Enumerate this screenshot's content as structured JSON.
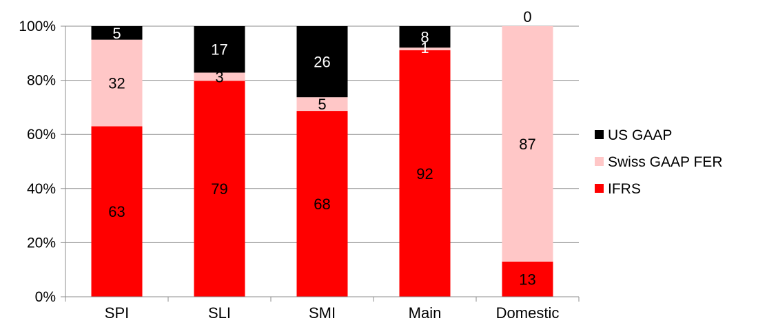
{
  "chart_data": {
    "type": "bar",
    "stacked": "percent",
    "categories": [
      "SPI",
      "SLI",
      "SMI",
      "Main",
      "Domestic"
    ],
    "series": [
      {
        "name": "IFRS",
        "color": "#ff0000",
        "label_color": "#000000",
        "values": [
          63,
          79,
          68,
          92,
          13
        ]
      },
      {
        "name": "Swiss GAAP FER",
        "color": "#ffc7c7",
        "label_color": "#000000",
        "values": [
          32,
          3,
          5,
          1,
          87
        ]
      },
      {
        "name": "US GAAP",
        "color": "#000000",
        "label_color": "#ffffff",
        "values": [
          5,
          17,
          26,
          8,
          0
        ]
      }
    ],
    "y_ticks": [
      "0%",
      "20%",
      "40%",
      "60%",
      "80%",
      "100%"
    ],
    "ylim": [
      0,
      100
    ],
    "legend_position": "right",
    "legend_order": [
      "US GAAP",
      "Swiss GAAP FER",
      "IFRS"
    ],
    "grid": true
  }
}
